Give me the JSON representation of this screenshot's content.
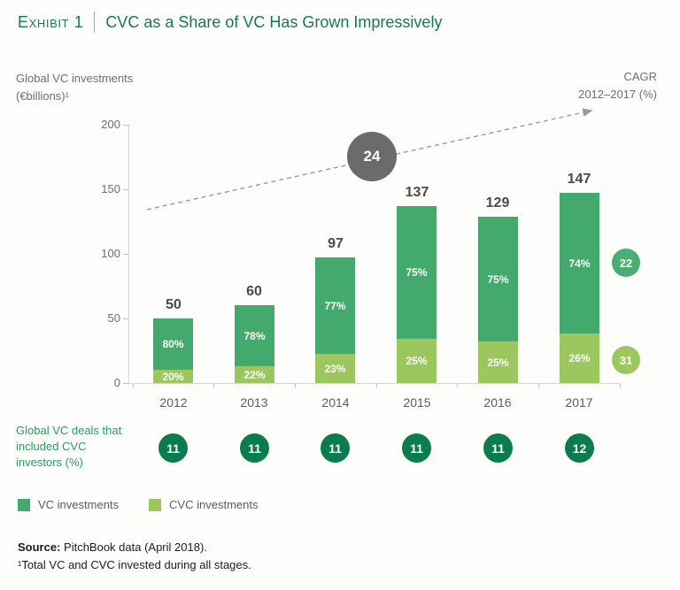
{
  "header": {
    "exhibit_label": "Exhibit 1",
    "divider": "|",
    "title": "CVC as a Share of VC Has Grown Impressively"
  },
  "labels": {
    "y_axis_line1": "Global VC investments",
    "y_axis_line2": "(€billions)¹",
    "cagr_line1": "CAGR",
    "cagr_line2": "2012–2017 (%)"
  },
  "chart_data": {
    "type": "bar",
    "stacked": true,
    "title": "CVC as a Share of VC Has Grown Impressively",
    "ylabel": "Global VC investments (€billions)",
    "xlabel": "",
    "ylim": [
      0,
      200
    ],
    "y_ticks": [
      0,
      50,
      100,
      150,
      200
    ],
    "grid": false,
    "legend_position": "bottom-left",
    "categories": [
      "2012",
      "2013",
      "2014",
      "2015",
      "2016",
      "2017"
    ],
    "totals": [
      50,
      60,
      97,
      137,
      129,
      147
    ],
    "series": [
      {
        "name": "VC investments",
        "share_pct": [
          80,
          78,
          77,
          75,
          75,
          74
        ],
        "color": "#44a96d",
        "cagr": 22,
        "cagr_circle_color": "#4aad73"
      },
      {
        "name": "CVC investments",
        "share_pct": [
          20,
          22,
          23,
          25,
          25,
          26
        ],
        "color": "#9cc75e",
        "cagr": 31,
        "cagr_circle_color": "#9cc75e"
      }
    ],
    "total_cagr": 24,
    "total_cagr_circle_color": "#6b6b6b",
    "deals": {
      "label": "Global VC deals that included CVC investors (%)",
      "values": [
        11,
        11,
        11,
        11,
        11,
        12
      ],
      "circle_color": "#0b7b50"
    },
    "legend": [
      "VC investments",
      "CVC investments"
    ]
  },
  "footer": {
    "source_label": "Source:",
    "source_text": " PitchBook data (April 2018).",
    "footnote": "¹Total VC and CVC invested during all stages."
  }
}
